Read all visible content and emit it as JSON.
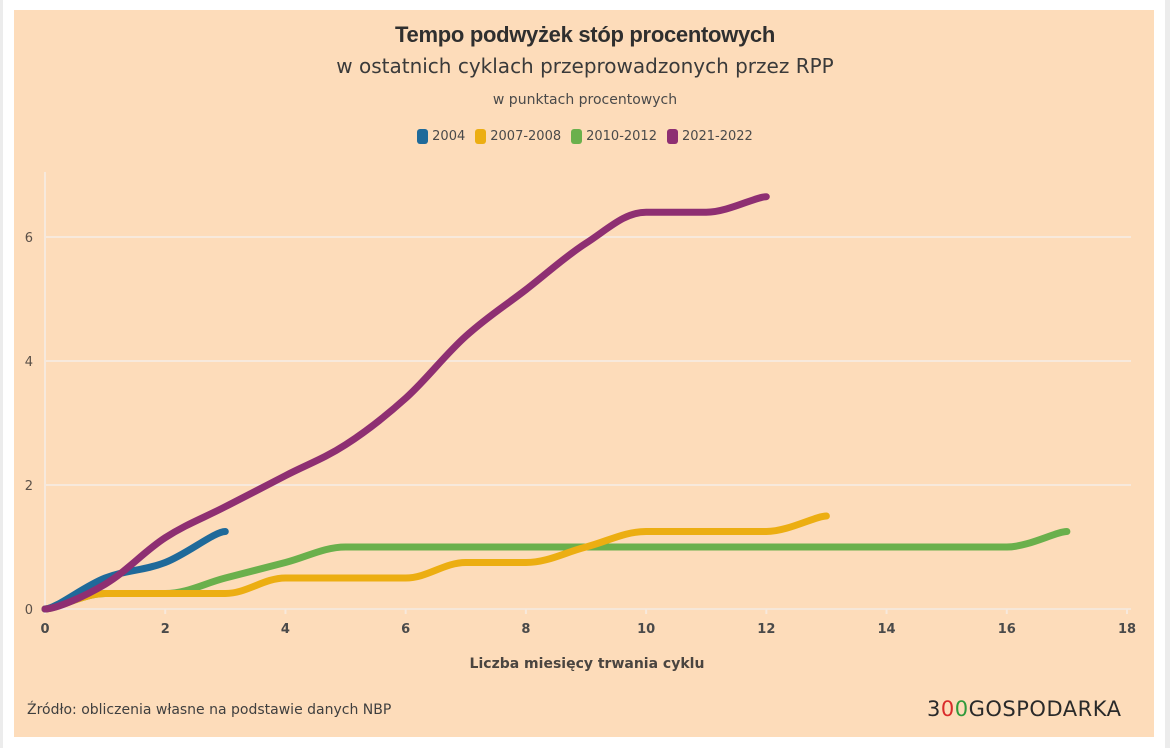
{
  "title": "Tempo podwyżek stóp procentowych",
  "subtitle": "w ostatnich cyklach przeprowadzonych przez RPP",
  "unit_note": "w punktach procentowych",
  "source": "Źródło: obliczenia własne na podstawie danych NBP",
  "logo": {
    "part1": "3",
    "part2": "0",
    "part3": "0",
    "part4": "GOSPODARKA",
    "color_red": "#d92b2b",
    "color_green": "#2f9a3a"
  },
  "chart_data": {
    "type": "line",
    "title": "Tempo podwyżek stóp procentowych",
    "subtitle": "w ostatnich cyklach przeprowadzonych przez RPP",
    "xlabel": "Liczba miesięcy trwania cyklu",
    "ylabel": "w punktach procentowych",
    "xlim": [
      0,
      18
    ],
    "ylim": [
      0,
      7
    ],
    "xticks": [
      0,
      2,
      4,
      6,
      8,
      10,
      12,
      14,
      16,
      18
    ],
    "yticks": [
      0,
      2,
      4,
      6
    ],
    "grid": "horizontal",
    "legend_position": "top-center",
    "series": [
      {
        "name": "2004",
        "color": "#1f6a9a",
        "x": [
          0,
          1,
          2,
          3
        ],
        "values": [
          0,
          0.5,
          0.75,
          1.25
        ]
      },
      {
        "name": "2007-2008",
        "color": "#ecae12",
        "x": [
          0,
          1,
          2,
          3,
          4,
          5,
          6,
          7,
          8,
          9,
          10,
          11,
          12,
          13
        ],
        "values": [
          0,
          0.25,
          0.25,
          0.25,
          0.5,
          0.5,
          0.5,
          0.75,
          0.75,
          1.0,
          1.25,
          1.25,
          1.25,
          1.5
        ]
      },
      {
        "name": "2010-2012",
        "color": "#6ab04c",
        "x": [
          0,
          1,
          2,
          3,
          4,
          5,
          6,
          7,
          8,
          9,
          10,
          11,
          12,
          13,
          14,
          15,
          16,
          17
        ],
        "values": [
          0,
          0.25,
          0.25,
          0.5,
          0.75,
          1.0,
          1.0,
          1.0,
          1.0,
          1.0,
          1.0,
          1.0,
          1.0,
          1.0,
          1.0,
          1.0,
          1.0,
          1.25
        ]
      },
      {
        "name": "2021-2022",
        "color": "#8e2f72",
        "x": [
          0,
          1,
          2,
          3,
          4,
          5,
          6,
          7,
          8,
          9,
          10,
          11,
          12
        ],
        "values": [
          0,
          0.4,
          1.15,
          1.65,
          2.15,
          2.65,
          3.4,
          4.4,
          5.15,
          5.9,
          6.4,
          6.4,
          6.65
        ]
      }
    ]
  }
}
